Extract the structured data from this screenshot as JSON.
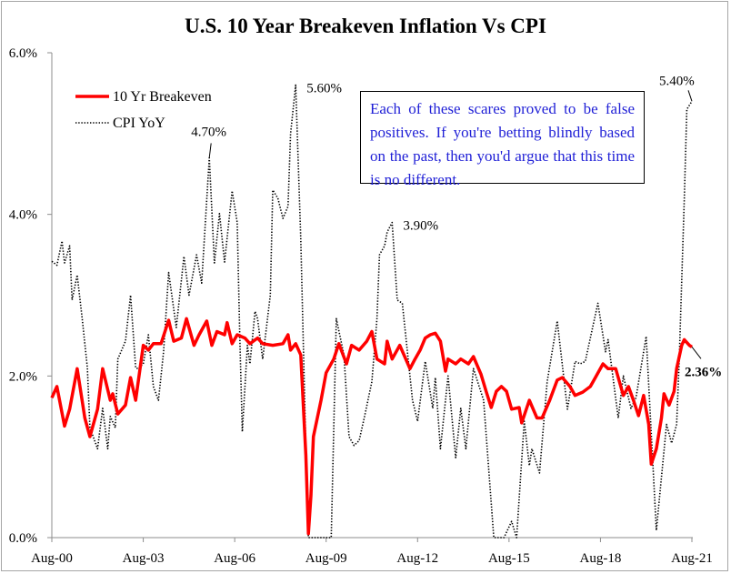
{
  "chart_data": {
    "type": "line",
    "title": "U.S. 10 Year Breakeven Inflation Vs CPI",
    "xlabel": "",
    "ylabel": "",
    "ylim": [
      0,
      6
    ],
    "y_ticks": [
      "0.0%",
      "2.0%",
      "4.0%",
      "6.0%"
    ],
    "y_tick_values": [
      0,
      2,
      4,
      6
    ],
    "x_range": [
      "2000-08",
      "2021-08"
    ],
    "x_ticks": [
      "Aug-00",
      "Aug-03",
      "Aug-06",
      "Aug-09",
      "Aug-12",
      "Aug-15",
      "Aug-18",
      "Aug-21"
    ],
    "x_tick_dates": [
      "2000-08",
      "2003-08",
      "2006-08",
      "2009-08",
      "2012-08",
      "2015-08",
      "2018-08",
      "2021-08"
    ],
    "grid": false,
    "legend": "top-left",
    "series": [
      {
        "name": "10 Yr Breakeven",
        "color": "#ff0000",
        "style": "solid",
        "points": [
          [
            "2000-08",
            1.73
          ],
          [
            "2000-10",
            1.87
          ],
          [
            "2001-01",
            1.38
          ],
          [
            "2001-03",
            1.59
          ],
          [
            "2001-06",
            2.09
          ],
          [
            "2001-09",
            1.48
          ],
          [
            "2001-11",
            1.25
          ],
          [
            "2002-02",
            1.59
          ],
          [
            "2002-04",
            2.09
          ],
          [
            "2002-07",
            1.7
          ],
          [
            "2002-08",
            1.78
          ],
          [
            "2002-10",
            1.53
          ],
          [
            "2003-01",
            1.64
          ],
          [
            "2003-03",
            1.98
          ],
          [
            "2003-05",
            1.7
          ],
          [
            "2003-08",
            2.38
          ],
          [
            "2003-10",
            2.32
          ],
          [
            "2003-12",
            2.4
          ],
          [
            "2004-03",
            2.4
          ],
          [
            "2004-06",
            2.69
          ],
          [
            "2004-08",
            2.43
          ],
          [
            "2004-11",
            2.47
          ],
          [
            "2005-01",
            2.71
          ],
          [
            "2005-04",
            2.38
          ],
          [
            "2005-06",
            2.51
          ],
          [
            "2005-09",
            2.68
          ],
          [
            "2005-11",
            2.38
          ],
          [
            "2006-01",
            2.55
          ],
          [
            "2006-04",
            2.51
          ],
          [
            "2006-05",
            2.66
          ],
          [
            "2006-07",
            2.4
          ],
          [
            "2006-09",
            2.51
          ],
          [
            "2006-12",
            2.47
          ],
          [
            "2007-02",
            2.4
          ],
          [
            "2007-05",
            2.47
          ],
          [
            "2007-07",
            2.4
          ],
          [
            "2007-11",
            2.38
          ],
          [
            "2008-03",
            2.4
          ],
          [
            "2008-05",
            2.51
          ],
          [
            "2008-06",
            2.32
          ],
          [
            "2008-08",
            2.4
          ],
          [
            "2008-10",
            2.26
          ],
          [
            "2008-12",
            1.02
          ],
          [
            "2009-01",
            0.05
          ],
          [
            "2009-02",
            0.52
          ],
          [
            "2009-03",
            1.25
          ],
          [
            "2009-06",
            1.7
          ],
          [
            "2009-08",
            2.04
          ],
          [
            "2009-11",
            2.21
          ],
          [
            "2010-01",
            2.4
          ],
          [
            "2010-04",
            2.15
          ],
          [
            "2010-06",
            2.38
          ],
          [
            "2010-09",
            2.32
          ],
          [
            "2010-12",
            2.43
          ],
          [
            "2011-02",
            2.55
          ],
          [
            "2011-04",
            2.21
          ],
          [
            "2011-07",
            2.15
          ],
          [
            "2011-08",
            2.43
          ],
          [
            "2011-10",
            2.21
          ],
          [
            "2012-01",
            2.38
          ],
          [
            "2012-05",
            2.09
          ],
          [
            "2012-07",
            2.21
          ],
          [
            "2012-09",
            2.32
          ],
          [
            "2012-11",
            2.47
          ],
          [
            "2013-01",
            2.51
          ],
          [
            "2013-03",
            2.53
          ],
          [
            "2013-05",
            2.43
          ],
          [
            "2013-07",
            2.06
          ],
          [
            "2013-08",
            2.21
          ],
          [
            "2013-11",
            2.15
          ],
          [
            "2014-01",
            2.21
          ],
          [
            "2014-04",
            2.15
          ],
          [
            "2014-06",
            2.24
          ],
          [
            "2014-09",
            2.02
          ],
          [
            "2014-11",
            1.81
          ],
          [
            "2015-01",
            1.61
          ],
          [
            "2015-03",
            1.81
          ],
          [
            "2015-05",
            1.87
          ],
          [
            "2015-07",
            1.81
          ],
          [
            "2015-09",
            1.59
          ],
          [
            "2015-12",
            1.61
          ],
          [
            "2016-01",
            1.42
          ],
          [
            "2016-04",
            1.7
          ],
          [
            "2016-07",
            1.48
          ],
          [
            "2016-09",
            1.48
          ],
          [
            "2016-12",
            1.7
          ],
          [
            "2017-03",
            1.95
          ],
          [
            "2017-05",
            1.98
          ],
          [
            "2017-08",
            1.87
          ],
          [
            "2017-10",
            1.76
          ],
          [
            "2018-01",
            1.8
          ],
          [
            "2018-04",
            1.87
          ],
          [
            "2018-06",
            1.98
          ],
          [
            "2018-09",
            2.15
          ],
          [
            "2018-11",
            2.09
          ],
          [
            "2019-02",
            2.09
          ],
          [
            "2019-05",
            1.76
          ],
          [
            "2019-07",
            1.87
          ],
          [
            "2019-09",
            1.7
          ],
          [
            "2019-11",
            1.51
          ],
          [
            "2020-01",
            1.76
          ],
          [
            "2020-03",
            1.4
          ],
          [
            "2020-04",
            0.91
          ],
          [
            "2020-06",
            1.1
          ],
          [
            "2020-08",
            1.48
          ],
          [
            "2020-09",
            1.78
          ],
          [
            "2020-11",
            1.64
          ],
          [
            "2021-01",
            1.81
          ],
          [
            "2021-02",
            2.09
          ],
          [
            "2021-04",
            2.38
          ],
          [
            "2021-05",
            2.45
          ],
          [
            "2021-07",
            2.38
          ],
          [
            "2021-08",
            2.36
          ]
        ]
      },
      {
        "name": "CPI YoY",
        "color": "#000000",
        "style": "dotted",
        "points": [
          [
            "2000-08",
            3.42
          ],
          [
            "2000-10",
            3.37
          ],
          [
            "2000-12",
            3.67
          ],
          [
            "2001-01",
            3.4
          ],
          [
            "2001-03",
            3.61
          ],
          [
            "2001-04",
            2.94
          ],
          [
            "2001-06",
            3.25
          ],
          [
            "2001-08",
            2.7
          ],
          [
            "2001-10",
            2.1
          ],
          [
            "2001-11",
            1.36
          ],
          [
            "2002-02",
            1.1
          ],
          [
            "2002-04",
            1.6
          ],
          [
            "2002-06",
            1.1
          ],
          [
            "2002-07",
            1.5
          ],
          [
            "2002-09",
            1.36
          ],
          [
            "2002-10",
            2.21
          ],
          [
            "2003-01",
            2.43
          ],
          [
            "2003-03",
            3.0
          ],
          [
            "2003-05",
            2.1
          ],
          [
            "2003-06",
            2.09
          ],
          [
            "2003-08",
            2.15
          ],
          [
            "2003-10",
            2.51
          ],
          [
            "2003-12",
            1.87
          ],
          [
            "2004-02",
            1.7
          ],
          [
            "2004-04",
            2.3
          ],
          [
            "2004-06",
            3.28
          ],
          [
            "2004-09",
            2.6
          ],
          [
            "2004-12",
            3.48
          ],
          [
            "2005-02",
            3.0
          ],
          [
            "2005-05",
            3.5
          ],
          [
            "2005-07",
            3.15
          ],
          [
            "2005-10",
            4.7
          ],
          [
            "2005-12",
            3.4
          ],
          [
            "2006-02",
            4.01
          ],
          [
            "2006-04",
            3.41
          ],
          [
            "2006-07",
            4.29
          ],
          [
            "2006-09",
            3.9
          ],
          [
            "2006-10",
            2.5
          ],
          [
            "2006-11",
            1.31
          ],
          [
            "2007-01",
            2.38
          ],
          [
            "2007-02",
            2.15
          ],
          [
            "2007-04",
            2.8
          ],
          [
            "2007-05",
            2.71
          ],
          [
            "2007-07",
            2.21
          ],
          [
            "2007-10",
            3.0
          ],
          [
            "2007-11",
            4.3
          ],
          [
            "2008-01",
            4.2
          ],
          [
            "2008-03",
            3.95
          ],
          [
            "2008-05",
            4.1
          ],
          [
            "2008-06",
            5.0
          ],
          [
            "2008-08",
            5.6
          ],
          [
            "2008-10",
            3.7
          ],
          [
            "2008-12",
            1.1
          ],
          [
            "2009-01",
            0.0
          ],
          [
            "2009-03",
            0.0
          ],
          [
            "2009-06",
            0.0
          ],
          [
            "2009-10",
            0.0
          ],
          [
            "2009-12",
            2.71
          ],
          [
            "2010-03",
            2.26
          ],
          [
            "2010-05",
            1.25
          ],
          [
            "2010-07",
            1.14
          ],
          [
            "2010-09",
            1.2
          ],
          [
            "2010-11",
            1.48
          ],
          [
            "2011-02",
            1.93
          ],
          [
            "2011-04",
            2.71
          ],
          [
            "2011-05",
            3.5
          ],
          [
            "2011-07",
            3.61
          ],
          [
            "2011-08",
            3.78
          ],
          [
            "2011-10",
            3.9
          ],
          [
            "2011-12",
            2.94
          ],
          [
            "2012-02",
            2.9
          ],
          [
            "2012-06",
            1.7
          ],
          [
            "2012-08",
            1.44
          ],
          [
            "2012-11",
            2.18
          ],
          [
            "2013-02",
            1.6
          ],
          [
            "2013-03",
            1.98
          ],
          [
            "2013-05",
            1.1
          ],
          [
            "2013-08",
            2.0
          ],
          [
            "2013-11",
            0.99
          ],
          [
            "2014-01",
            1.6
          ],
          [
            "2014-03",
            1.1
          ],
          [
            "2014-06",
            2.09
          ],
          [
            "2014-10",
            1.7
          ],
          [
            "2015-02",
            0.0
          ],
          [
            "2015-06",
            0.0
          ],
          [
            "2015-09",
            0.2
          ],
          [
            "2015-11",
            0.0
          ],
          [
            "2016-02",
            1.44
          ],
          [
            "2016-04",
            0.89
          ],
          [
            "2016-05",
            1.1
          ],
          [
            "2016-08",
            0.8
          ],
          [
            "2016-11",
            1.93
          ],
          [
            "2017-03",
            2.68
          ],
          [
            "2017-07",
            1.59
          ],
          [
            "2017-10",
            2.18
          ],
          [
            "2017-12",
            2.15
          ],
          [
            "2018-02",
            2.18
          ],
          [
            "2018-07",
            2.9
          ],
          [
            "2018-10",
            2.3
          ],
          [
            "2018-11",
            2.45
          ],
          [
            "2019-03",
            1.48
          ],
          [
            "2019-05",
            2.0
          ],
          [
            "2019-08",
            1.6
          ],
          [
            "2019-10",
            1.73
          ],
          [
            "2020-02",
            2.49
          ],
          [
            "2020-06",
            0.09
          ],
          [
            "2020-10",
            1.4
          ],
          [
            "2020-12",
            1.17
          ],
          [
            "2021-02",
            1.4
          ],
          [
            "2021-03",
            2.18
          ],
          [
            "2021-05",
            4.18
          ],
          [
            "2021-06",
            5.3
          ],
          [
            "2021-08",
            5.4
          ]
        ]
      }
    ],
    "annotations": [
      {
        "text": "4.70%",
        "series": 1,
        "date": "2005-10",
        "color": "#000000"
      },
      {
        "text": "5.60%",
        "series": 1,
        "date": "2008-08",
        "color": "#000000"
      },
      {
        "text": "3.90%",
        "series": 1,
        "date": "2011-10",
        "color": "#000000"
      },
      {
        "text": "5.40%",
        "series": 1,
        "date": "2021-08",
        "color": "#000000"
      },
      {
        "text": "2.36%",
        "series": 0,
        "date": "2021-08",
        "color": "#ff0000"
      }
    ],
    "note_box": {
      "text": "Each of these scares proved to be false positives. If you're betting blindly based on the past, then you'd argue that this time is no different.",
      "color": "#1f1fd6"
    }
  }
}
